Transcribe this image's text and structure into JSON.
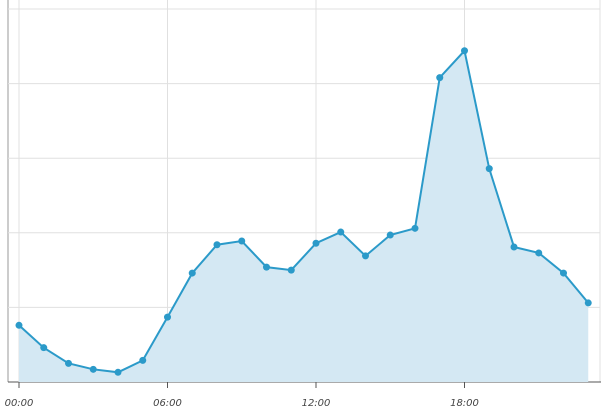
{
  "chart_data": {
    "type": "area",
    "categories": [
      "00:00",
      null,
      null,
      null,
      null,
      null,
      "06:00",
      null,
      null,
      null,
      null,
      null,
      "12:00",
      null,
      null,
      null,
      null,
      null,
      "18:00",
      null,
      null,
      null,
      null,
      null
    ],
    "values": [
      0.76,
      0.46,
      0.25,
      0.17,
      0.13,
      0.29,
      0.87,
      1.46,
      1.84,
      1.89,
      1.54,
      1.5,
      1.86,
      2.01,
      1.69,
      1.97,
      2.06,
      4.08,
      4.44,
      2.86,
      1.81,
      1.73,
      1.46,
      1.06
    ],
    "color": "#2b9ac9",
    "fill_color": "#d4e8f3",
    "ylim": [
      0,
      5
    ],
    "ygrid_lines": [
      1,
      2,
      3,
      4,
      5
    ],
    "grid": true
  }
}
